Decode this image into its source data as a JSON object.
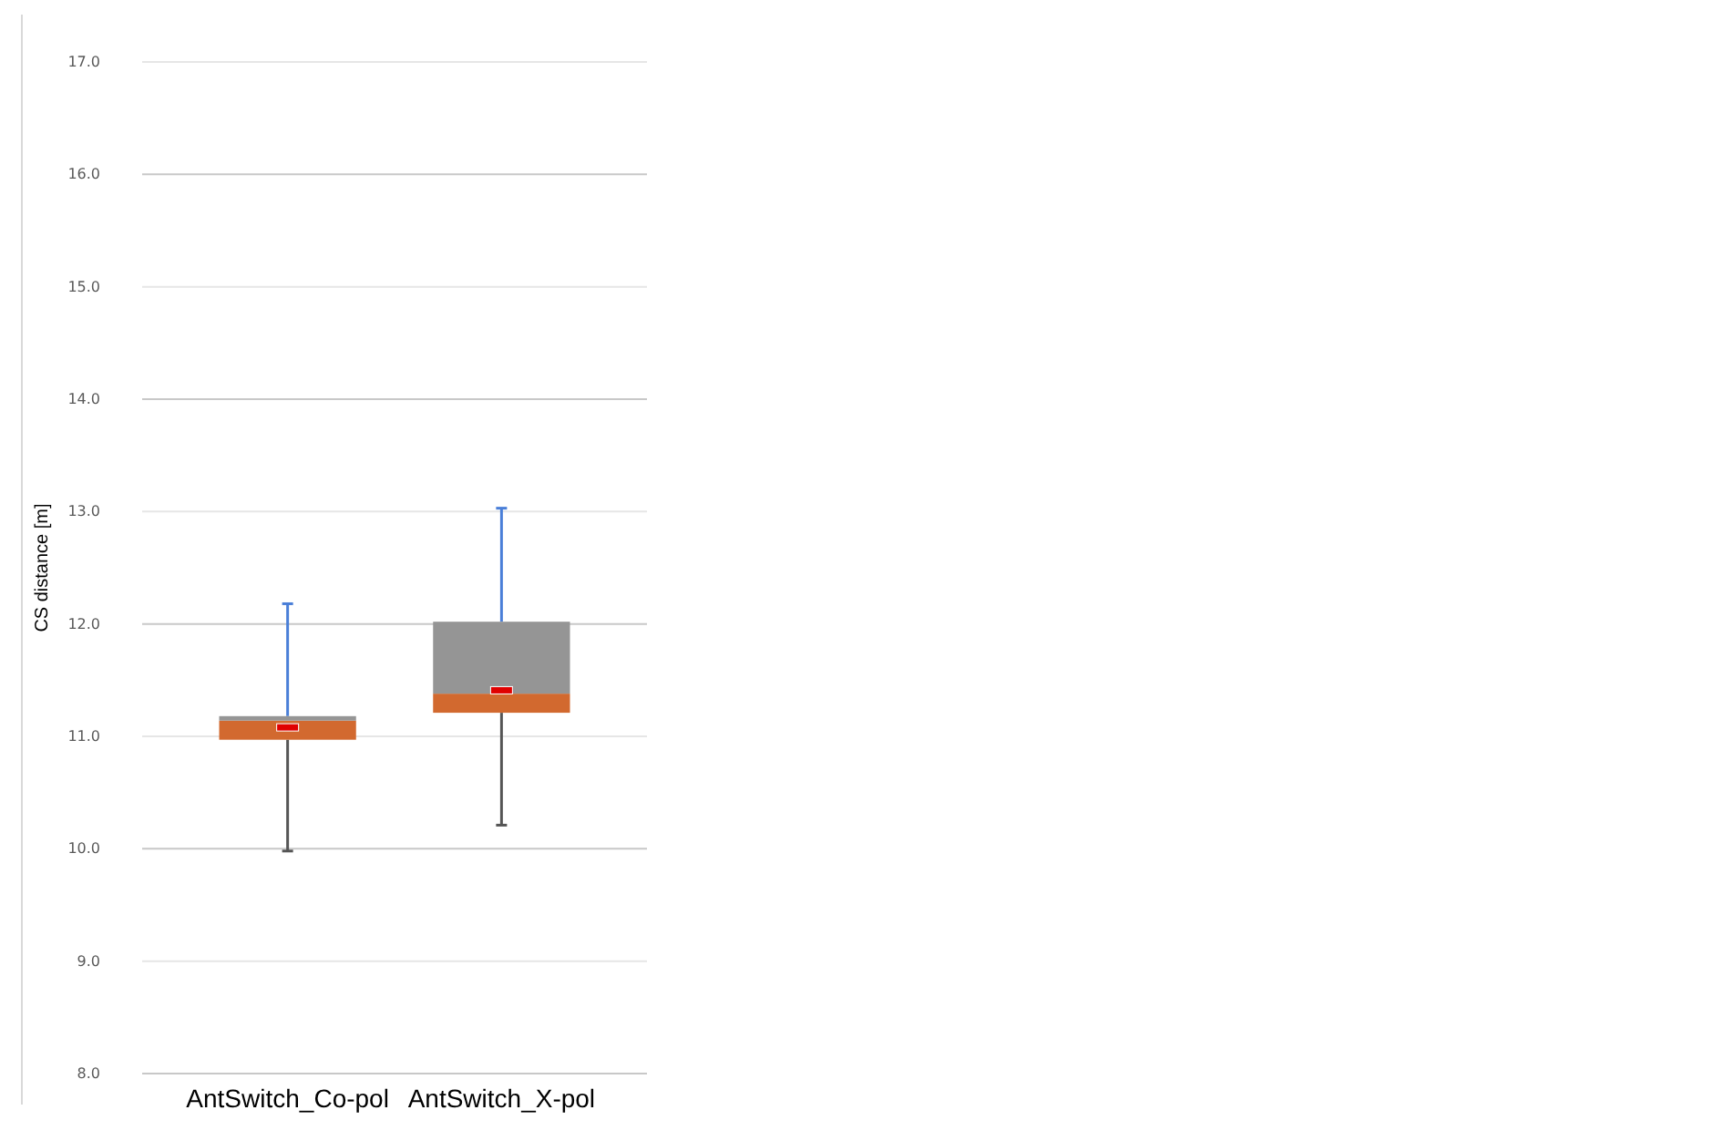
{
  "chart_data": {
    "type": "box",
    "ylabel": "CS distance [m]",
    "categories": [
      "AntSwitch_Co-pol",
      "AntSwitch_X-pol"
    ],
    "boxes": [
      {
        "low": 9.98,
        "q1": 10.97,
        "median": 11.14,
        "q3": 11.18,
        "high": 12.18,
        "mean": 11.08
      },
      {
        "low": 10.21,
        "q1": 11.21,
        "median": 11.38,
        "q3": 12.02,
        "high": 13.03,
        "mean": 11.41
      }
    ],
    "ylim": [
      8,
      17
    ],
    "yticks": [
      {
        "value": 8,
        "label": "8.0"
      },
      {
        "value": 9,
        "label": "9.0"
      },
      {
        "value": 10,
        "label": "10.0"
      },
      {
        "value": 11,
        "label": "11.0"
      },
      {
        "value": 12,
        "label": "12.0"
      },
      {
        "value": 13,
        "label": "13.0"
      },
      {
        "value": 14,
        "label": "14.0"
      },
      {
        "value": 15,
        "label": "15.0"
      },
      {
        "value": 16,
        "label": "16.0"
      },
      {
        "value": 17,
        "label": "17.0"
      }
    ],
    "grid": "y"
  }
}
